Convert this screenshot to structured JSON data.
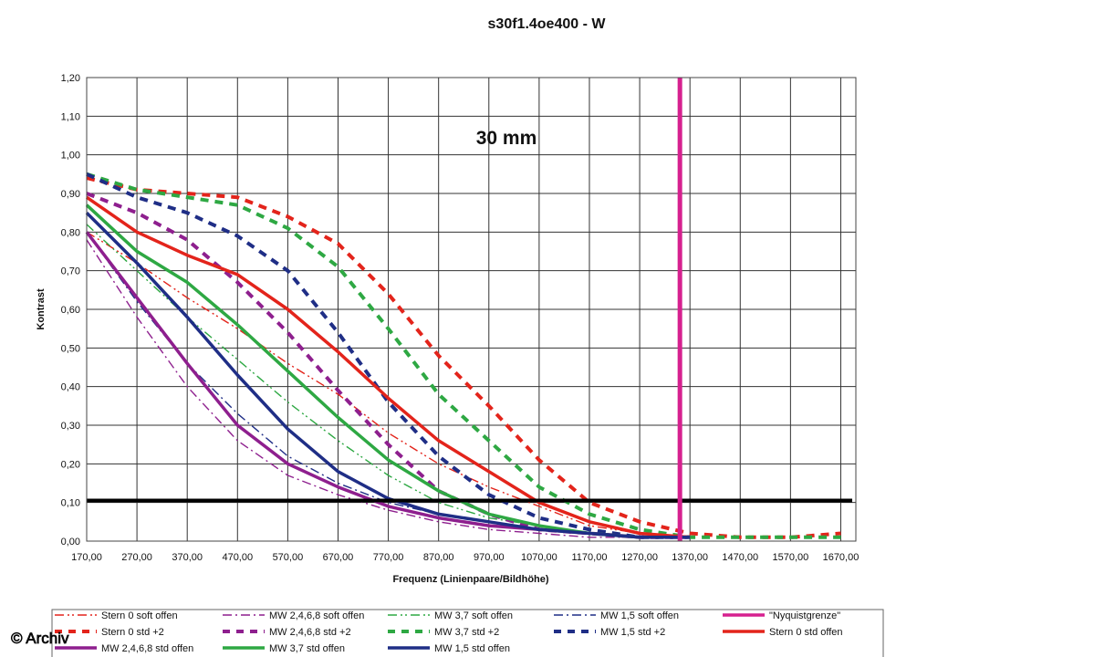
{
  "chart_data": {
    "type": "line",
    "title": "s30f1.4oe400 - W",
    "annotation": "30 mm",
    "xlabel": "Frequenz (Linienpaare/Bildhöhe)",
    "ylabel": "Kontrast",
    "xlim": [
      170,
      1700
    ],
    "ylim": [
      0,
      1.2
    ],
    "xticks": [
      "170,00",
      "270,00",
      "370,00",
      "470,00",
      "570,00",
      "670,00",
      "770,00",
      "870,00",
      "970,00",
      "1070,00",
      "1170,00",
      "1270,00",
      "1370,00",
      "1470,00",
      "1570,00",
      "1670,00"
    ],
    "yticks": [
      "0,00",
      "0,10",
      "0,20",
      "0,30",
      "0,40",
      "0,50",
      "0,60",
      "0,70",
      "0,80",
      "0,90",
      "1,00",
      "1,10",
      "1,20"
    ],
    "grid": true,
    "legend_position": "bottom",
    "reference_lines": [
      {
        "orientation": "horizontal",
        "y": 0.105,
        "color": "#000000"
      },
      {
        "orientation": "vertical",
        "x": 1350,
        "color": "#d6218f",
        "series": "\"Nyquistgrenze\""
      }
    ],
    "series": [
      {
        "name": "Stern 0 soft offen",
        "color": "#e3241b",
        "style": "dashdotdot",
        "x": [
          170,
          270,
          370,
          470,
          570,
          670,
          770,
          870,
          970,
          1070,
          1170,
          1270,
          1370
        ],
        "values": [
          0.8,
          0.72,
          0.63,
          0.55,
          0.46,
          0.38,
          0.28,
          0.2,
          0.14,
          0.09,
          0.04,
          0.02,
          0.01
        ]
      },
      {
        "name": "MW 2,4,6,8 soft offen",
        "color": "#8e1f8e",
        "style": "dashdot",
        "x": [
          170,
          270,
          370,
          470,
          570,
          670,
          770,
          870,
          970,
          1070,
          1170,
          1270,
          1370
        ],
        "values": [
          0.78,
          0.58,
          0.4,
          0.26,
          0.17,
          0.12,
          0.08,
          0.05,
          0.03,
          0.02,
          0.01,
          0.01,
          0.01
        ]
      },
      {
        "name": "MW 3,7 soft offen",
        "color": "#2ea843",
        "style": "dashdotdot",
        "x": [
          170,
          270,
          370,
          470,
          570,
          670,
          770,
          870,
          970,
          1070,
          1170,
          1270,
          1370
        ],
        "values": [
          0.82,
          0.7,
          0.58,
          0.47,
          0.36,
          0.26,
          0.17,
          0.1,
          0.06,
          0.04,
          0.02,
          0.01,
          0.01
        ]
      },
      {
        "name": "MW 1,5 soft offen",
        "color": "#1f2e86",
        "style": "dashdot",
        "x": [
          170,
          270,
          370,
          470,
          570,
          670,
          770,
          870,
          970,
          1070,
          1170,
          1270,
          1370
        ],
        "values": [
          0.8,
          0.62,
          0.46,
          0.33,
          0.22,
          0.15,
          0.1,
          0.07,
          0.05,
          0.03,
          0.02,
          0.01,
          0.01
        ]
      },
      {
        "name": "\"Nyquistgrenze\"",
        "color": "#d6218f",
        "style": "solid",
        "x": [
          1350,
          1350
        ],
        "values": [
          0,
          1.2
        ]
      },
      {
        "name": "Stern 0 std +2",
        "color": "#e3241b",
        "style": "dash",
        "x": [
          170,
          270,
          370,
          470,
          570,
          670,
          770,
          870,
          970,
          1070,
          1170,
          1270,
          1370,
          1470,
          1570,
          1670
        ],
        "values": [
          0.94,
          0.91,
          0.9,
          0.89,
          0.84,
          0.77,
          0.64,
          0.48,
          0.35,
          0.21,
          0.1,
          0.05,
          0.02,
          0.01,
          0.01,
          0.02
        ]
      },
      {
        "name": "MW 2,4,6,8 std +2",
        "color": "#8e1f8e",
        "style": "dash",
        "x": [
          170,
          270,
          370,
          470,
          570,
          670,
          770,
          870,
          970,
          1070,
          1170,
          1270,
          1370
        ],
        "values": [
          0.9,
          0.85,
          0.78,
          0.67,
          0.54,
          0.39,
          0.25,
          0.13,
          0.07,
          0.03,
          0.02,
          0.01,
          0.01
        ]
      },
      {
        "name": "MW 3,7 std +2",
        "color": "#2ea843",
        "style": "dash",
        "x": [
          170,
          270,
          370,
          470,
          570,
          670,
          770,
          870,
          970,
          1070,
          1170,
          1270,
          1370,
          1470,
          1570,
          1670
        ],
        "values": [
          0.95,
          0.91,
          0.89,
          0.87,
          0.81,
          0.71,
          0.55,
          0.38,
          0.26,
          0.14,
          0.07,
          0.03,
          0.01,
          0.01,
          0.01,
          0.01
        ]
      },
      {
        "name": "MW 1,5 std +2",
        "color": "#1f2e86",
        "style": "dash",
        "x": [
          170,
          270,
          370,
          470,
          570,
          670,
          770,
          870,
          970,
          1070,
          1170,
          1270,
          1370
        ],
        "values": [
          0.95,
          0.89,
          0.85,
          0.79,
          0.7,
          0.54,
          0.36,
          0.22,
          0.12,
          0.06,
          0.03,
          0.01,
          0.01
        ]
      },
      {
        "name": "Stern 0 std offen",
        "color": "#e3241b",
        "style": "solid",
        "x": [
          170,
          270,
          370,
          470,
          570,
          670,
          770,
          870,
          970,
          1070,
          1170,
          1270,
          1370
        ],
        "values": [
          0.89,
          0.8,
          0.74,
          0.69,
          0.6,
          0.49,
          0.37,
          0.26,
          0.18,
          0.1,
          0.05,
          0.02,
          0.01
        ]
      },
      {
        "name": "MW 2,4,6,8 std offen",
        "color": "#8e1f8e",
        "style": "solid",
        "x": [
          170,
          270,
          370,
          470,
          570,
          670,
          770,
          870,
          970,
          1070,
          1170,
          1270,
          1370
        ],
        "values": [
          0.8,
          0.63,
          0.46,
          0.3,
          0.2,
          0.14,
          0.09,
          0.06,
          0.04,
          0.03,
          0.02,
          0.01,
          0.01
        ]
      },
      {
        "name": "MW 3,7 std offen",
        "color": "#2ea843",
        "style": "solid",
        "x": [
          170,
          270,
          370,
          470,
          570,
          670,
          770,
          870,
          970,
          1070,
          1170,
          1270,
          1370
        ],
        "values": [
          0.87,
          0.75,
          0.67,
          0.56,
          0.44,
          0.32,
          0.21,
          0.13,
          0.07,
          0.04,
          0.02,
          0.01,
          0.01
        ]
      },
      {
        "name": "MW 1,5 std offen",
        "color": "#1f2e86",
        "style": "solid",
        "x": [
          170,
          270,
          370,
          470,
          570,
          670,
          770,
          870,
          970,
          1070,
          1170,
          1270,
          1370
        ],
        "values": [
          0.85,
          0.72,
          0.58,
          0.43,
          0.29,
          0.18,
          0.11,
          0.07,
          0.05,
          0.03,
          0.02,
          0.01,
          0.01
        ]
      }
    ]
  },
  "watermark": "© Archiv"
}
